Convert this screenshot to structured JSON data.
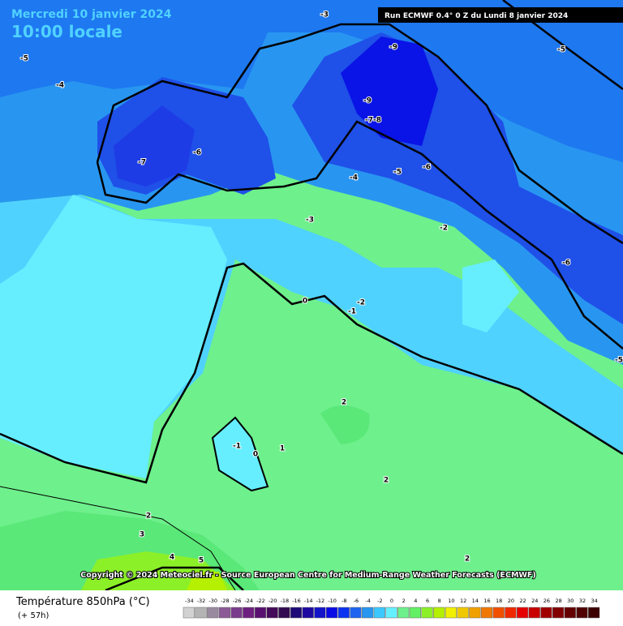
{
  "header": {
    "title": "Mercredi 10 janvier 2024",
    "time": "10:00 locale",
    "run": "Run ECMWF 0.4° 0 Z du Lundi 8 janvier 2024"
  },
  "copyright": "Copyright © 2024 Meteociel.fr - Source European Centre for Medium-Range Weather Forecasts (ECMWF)",
  "contour_labels": [
    "-3",
    "-5",
    "-4",
    "-9",
    "-5",
    "-7",
    "-6",
    "-9",
    "-7-8",
    "-4",
    "-5",
    "-6",
    "-3",
    "-2",
    "-6",
    "0",
    "-1",
    "-2",
    "-5",
    "2",
    "-1",
    "0",
    "1",
    "2",
    "2",
    "3",
    "4",
    "5",
    "2"
  ],
  "legend": {
    "label": "Température 850hPa (°C)",
    "lead": "(+ 57h)",
    "scale": [
      -34,
      -32,
      -30,
      -28,
      -26,
      -24,
      -22,
      -20,
      -18,
      -16,
      -14,
      -12,
      -10,
      -8,
      -6,
      -4,
      -2,
      0,
      2,
      4,
      6,
      8,
      10,
      12,
      14,
      16,
      18,
      20,
      22,
      24,
      26,
      28,
      30,
      32,
      34
    ],
    "colors": [
      "#d2d2d2",
      "#b4b4b4",
      "#9a8aa0",
      "#8c5a96",
      "#7a3c8c",
      "#6e2080",
      "#5a1070",
      "#460a5a",
      "#320a50",
      "#1e0a78",
      "#1e0aa0",
      "#1414c8",
      "#0a0ae6",
      "#0a32f0",
      "#1e64f0",
      "#2896f0",
      "#3cc8ff",
      "#64f0ff",
      "#6ef08c",
      "#64f064",
      "#8cf028",
      "#b4f000",
      "#f0f000",
      "#f0c800",
      "#f0a000",
      "#f07800",
      "#f05000",
      "#f02800",
      "#e60000",
      "#c80000",
      "#a00000",
      "#820000",
      "#640000",
      "#500000",
      "#3c0000"
    ]
  }
}
